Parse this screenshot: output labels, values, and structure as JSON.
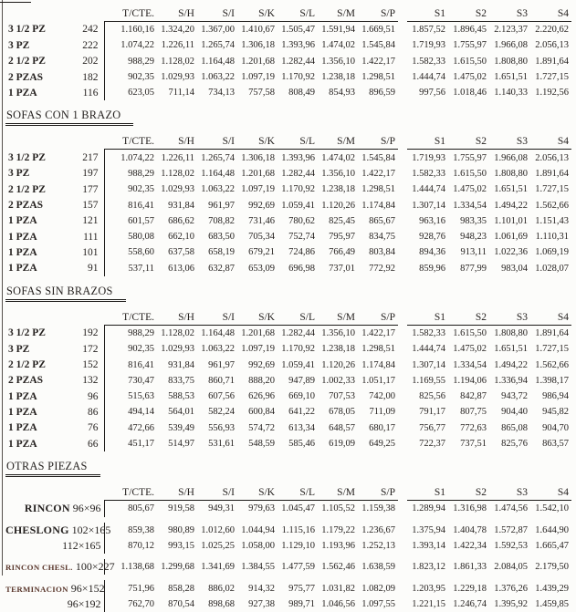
{
  "colors": {
    "text": "#262220",
    "rule": "#1c1a18",
    "accent_label": "#5a372c",
    "background": "#fcfcfa"
  },
  "columns": [
    "T/CTE.",
    "S/H",
    "S/I",
    "S/K",
    "S/L",
    "S/M",
    "S/P",
    "S1",
    "S2",
    "S3",
    "S4"
  ],
  "sections": [
    {
      "title": "",
      "rows": [
        {
          "label": "3 1/2 PZ",
          "count": "242",
          "values": [
            "1.160,16",
            "1.324,20",
            "1.367,00",
            "1.410,67",
            "1.505,47",
            "1.591,94",
            "1.669,51",
            "1.857,52",
            "1.896,45",
            "2.123,37",
            "2.220,62"
          ]
        },
        {
          "label": "3 PZ",
          "count": "222",
          "values": [
            "1.074,22",
            "1.226,11",
            "1.265,74",
            "1.306,18",
            "1.393,96",
            "1.474,02",
            "1.545,84",
            "1.719,93",
            "1.755,97",
            "1.966,08",
            "2.056,13"
          ]
        },
        {
          "label": "2 1/2 PZ",
          "count": "202",
          "values": [
            "988,29",
            "1.128,02",
            "1.164,48",
            "1.201,68",
            "1.282,44",
            "1.356,10",
            "1.422,17",
            "1.582,33",
            "1.615,50",
            "1.808,80",
            "1.891,64"
          ]
        },
        {
          "label": "2 PZAS",
          "count": "182",
          "values": [
            "902,35",
            "1.029,93",
            "1.063,22",
            "1.097,19",
            "1.170,92",
            "1.238,18",
            "1.298,51",
            "1.444,74",
            "1.475,02",
            "1.651,51",
            "1.727,15"
          ]
        },
        {
          "label": "1 PZA",
          "count": "116",
          "values": [
            "623,05",
            "711,14",
            "734,13",
            "757,58",
            "808,49",
            "854,93",
            "896,59",
            "997,56",
            "1.018,46",
            "1.140,33",
            "1.192,56"
          ]
        }
      ]
    },
    {
      "title": "SOFAS CON 1 BRAZO",
      "rows": [
        {
          "label": "3 1/2 PZ",
          "count": "217",
          "values": [
            "1.074,22",
            "1.226,11",
            "1.265,74",
            "1.306,18",
            "1.393,96",
            "1.474,02",
            "1.545,84",
            "1.719,93",
            "1.755,97",
            "1.966,08",
            "2.056,13"
          ]
        },
        {
          "label": "3 PZ",
          "count": "197",
          "values": [
            "988,29",
            "1.128,02",
            "1.164,48",
            "1.201,68",
            "1.282,44",
            "1.356,10",
            "1.422,17",
            "1.582,33",
            "1.615,50",
            "1.808,80",
            "1.891,64"
          ]
        },
        {
          "label": "2 1/2 PZ",
          "count": "177",
          "values": [
            "902,35",
            "1.029,93",
            "1.063,22",
            "1.097,19",
            "1.170,92",
            "1.238,18",
            "1.298,51",
            "1.444,74",
            "1.475,02",
            "1.651,51",
            "1.727,15"
          ]
        },
        {
          "label": "2 PZAS",
          "count": "157",
          "values": [
            "816,41",
            "931,84",
            "961,97",
            "992,69",
            "1.059,41",
            "1.120,26",
            "1.174,84",
            "1.307,14",
            "1.334,54",
            "1.494,22",
            "1.562,66"
          ]
        },
        {
          "label": "1 PZA",
          "count": "121",
          "values": [
            "601,57",
            "686,62",
            "708,82",
            "731,46",
            "780,62",
            "825,45",
            "865,67",
            "963,16",
            "983,35",
            "1.101,01",
            "1.151,43"
          ]
        },
        {
          "label": "1 PZA",
          "count": "111",
          "values": [
            "580,08",
            "662,10",
            "683,50",
            "705,34",
            "752,74",
            "795,97",
            "834,75",
            "928,76",
            "948,23",
            "1.061,69",
            "1.110,31"
          ]
        },
        {
          "label": "1 PZA",
          "count": "101",
          "values": [
            "558,60",
            "637,58",
            "658,19",
            "679,21",
            "724,86",
            "766,49",
            "803,84",
            "894,36",
            "913,11",
            "1.022,36",
            "1.069,19"
          ]
        },
        {
          "label": "1 PZA",
          "count": "91",
          "values": [
            "537,11",
            "613,06",
            "632,87",
            "653,09",
            "696,98",
            "737,01",
            "772,92",
            "859,96",
            "877,99",
            "983,04",
            "1.028,07"
          ]
        }
      ]
    },
    {
      "title": "SOFAS SIN BRAZOS",
      "rows": [
        {
          "label": "3 1/2 PZ",
          "count": "192",
          "values": [
            "988,29",
            "1.128,02",
            "1.164,48",
            "1.201,68",
            "1.282,44",
            "1.356,10",
            "1.422,17",
            "1.582,33",
            "1.615,50",
            "1.808,80",
            "1.891,64"
          ]
        },
        {
          "label": "3 PZ",
          "count": "172",
          "values": [
            "902,35",
            "1.029,93",
            "1.063,22",
            "1.097,19",
            "1.170,92",
            "1.238,18",
            "1.298,51",
            "1.444,74",
            "1.475,02",
            "1.651,51",
            "1.727,15"
          ]
        },
        {
          "label": "2 1/2 PZ",
          "count": "152",
          "values": [
            "816,41",
            "931,84",
            "961,97",
            "992,69",
            "1.059,41",
            "1.120,26",
            "1.174,84",
            "1.307,14",
            "1.334,54",
            "1.494,22",
            "1.562,66"
          ]
        },
        {
          "label": "2 PZAS",
          "count": "132",
          "values": [
            "730,47",
            "833,75",
            "860,71",
            "888,20",
            "947,89",
            "1.002,33",
            "1.051,17",
            "1.169,55",
            "1.194,06",
            "1.336,94",
            "1.398,17"
          ]
        },
        {
          "label": "1 PZA",
          "count": "96",
          "values": [
            "515,63",
            "588,53",
            "607,56",
            "626,96",
            "669,10",
            "707,53",
            "742,00",
            "825,56",
            "842,87",
            "943,72",
            "986,94"
          ]
        },
        {
          "label": "1 PZA",
          "count": "86",
          "values": [
            "494,14",
            "564,01",
            "582,24",
            "600,84",
            "641,22",
            "678,05",
            "711,09",
            "791,17",
            "807,75",
            "904,40",
            "945,82"
          ]
        },
        {
          "label": "1 PZA",
          "count": "76",
          "values": [
            "472,66",
            "539,49",
            "556,93",
            "574,72",
            "613,34",
            "648,57",
            "680,17",
            "756,77",
            "772,63",
            "865,08",
            "904,70"
          ]
        },
        {
          "label": "1 PZA",
          "count": "66",
          "values": [
            "451,17",
            "514,97",
            "531,61",
            "548,59",
            "585,46",
            "619,09",
            "649,25",
            "722,37",
            "737,51",
            "825,76",
            "863,57"
          ]
        }
      ]
    },
    {
      "title": "OTRAS PIEZAS",
      "pieces": true,
      "rows": [
        {
          "name": "RINCON",
          "name_size": "large",
          "size": "96×96",
          "gap_before": false,
          "values": [
            "805,67",
            "919,58",
            "949,31",
            "979,63",
            "1.045,47",
            "1.105,52",
            "1.159,38",
            "1.289,94",
            "1.316,98",
            "1.474,56",
            "1.542,10"
          ]
        },
        {
          "name": "CHESLONG",
          "name_size": "large",
          "size": "102×165",
          "gap_before": true,
          "values": [
            "859,38",
            "980,89",
            "1.012,60",
            "1.044,94",
            "1.115,16",
            "1.179,22",
            "1.236,67",
            "1.375,94",
            "1.404,78",
            "1.572,87",
            "1.644,90"
          ]
        },
        {
          "name": "",
          "name_size": "large",
          "size": "112×165",
          "gap_before": false,
          "values": [
            "870,12",
            "993,15",
            "1.025,25",
            "1.058,00",
            "1.129,10",
            "1.193,96",
            "1.252,13",
            "1.393,14",
            "1.422,34",
            "1.592,53",
            "1.665,47"
          ]
        },
        {
          "name": "RINCON CHESL.",
          "name_size": "small",
          "size": "100×227",
          "gap_before": true,
          "values": [
            "1.138,68",
            "1.299,68",
            "1.341,69",
            "1.384,55",
            "1.477,59",
            "1.562,46",
            "1.638,59",
            "1.823,12",
            "1.861,33",
            "2.084,05",
            "2.179,50"
          ]
        },
        {
          "name": "TERMINACION",
          "name_size": "small",
          "size": "96×152",
          "gap_before": true,
          "values": [
            "751,96",
            "858,28",
            "886,02",
            "914,32",
            "975,77",
            "1.031,82",
            "1.082,09",
            "1.203,95",
            "1.229,18",
            "1.376,26",
            "1.439,29"
          ]
        },
        {
          "name": "",
          "name_size": "small",
          "size": "96×192",
          "gap_before": false,
          "values": [
            "762,70",
            "870,54",
            "898,68",
            "927,38",
            "989,71",
            "1.046,56",
            "1.097,55",
            "1.221,15",
            "1.246,74",
            "1.395,92",
            "1.459,85"
          ]
        }
      ]
    }
  ]
}
